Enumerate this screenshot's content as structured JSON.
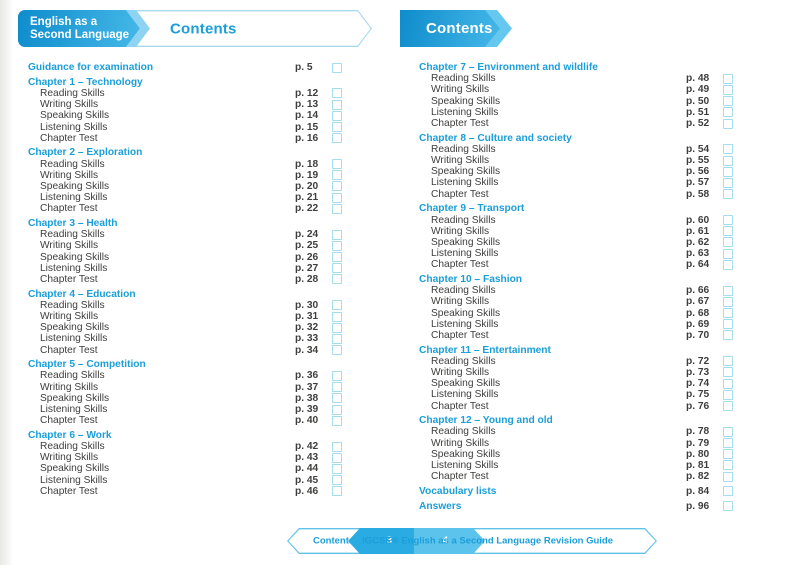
{
  "colors": {
    "accent_blue": "#1b9ed9",
    "banner_gradient_start": "#0f8ccc",
    "banner_gradient_end": "#45b8e8",
    "outline_blue": "#a9d9ee",
    "footer_outline_blue": "#5fc0e8",
    "footer_page_left_fill": "#2aabe2",
    "footer_page_right_fill": "#5cc3ec",
    "checkbox_border": "#a5dcee",
    "body_text": "#3e3e3d"
  },
  "left_page": {
    "banner": {
      "series_line1": "English as a",
      "series_line2": "Second Language",
      "title": "Contents"
    },
    "sections": [
      {
        "title": "Guidance for examination",
        "page": "p. 5",
        "items": []
      },
      {
        "title": "Chapter 1 – Technology",
        "items": [
          {
            "label": "Reading Skills",
            "page": "p. 12"
          },
          {
            "label": "Writing Skills",
            "page": "p. 13"
          },
          {
            "label": "Speaking Skills",
            "page": "p. 14"
          },
          {
            "label": "Listening Skills",
            "page": "p. 15"
          },
          {
            "label": "Chapter Test",
            "page": "p. 16"
          }
        ]
      },
      {
        "title": "Chapter 2 – Exploration",
        "items": [
          {
            "label": "Reading Skills",
            "page": "p. 18"
          },
          {
            "label": "Writing Skills",
            "page": "p. 19"
          },
          {
            "label": "Speaking Skills",
            "page": "p. 20"
          },
          {
            "label": "Listening Skills",
            "page": "p. 21"
          },
          {
            "label": "Chapter Test",
            "page": "p. 22"
          }
        ]
      },
      {
        "title": "Chapter 3 – Health",
        "items": [
          {
            "label": "Reading Skills",
            "page": "p. 24"
          },
          {
            "label": "Writing Skills",
            "page": "p. 25"
          },
          {
            "label": "Speaking Skills",
            "page": "p. 26"
          },
          {
            "label": "Listening Skills",
            "page": "p. 27"
          },
          {
            "label": "Chapter Test",
            "page": "p. 28"
          }
        ]
      },
      {
        "title": "Chapter 4 – Education",
        "items": [
          {
            "label": "Reading Skills",
            "page": "p. 30"
          },
          {
            "label": "Writing Skills",
            "page": "p. 31"
          },
          {
            "label": "Speaking Skills",
            "page": "p. 32"
          },
          {
            "label": "Listening Skills",
            "page": "p. 33"
          },
          {
            "label": "Chapter Test",
            "page": "p. 34"
          }
        ]
      },
      {
        "title": "Chapter 5 – Competition",
        "items": [
          {
            "label": "Reading Skills",
            "page": "p. 36"
          },
          {
            "label": "Writing Skills",
            "page": "p. 37"
          },
          {
            "label": "Speaking Skills",
            "page": "p. 38"
          },
          {
            "label": "Listening Skills",
            "page": "p. 39"
          },
          {
            "label": "Chapter Test",
            "page": "p. 40"
          }
        ]
      },
      {
        "title": "Chapter 6 – Work",
        "items": [
          {
            "label": "Reading Skills",
            "page": "p. 42"
          },
          {
            "label": "Writing Skills",
            "page": "p. 43"
          },
          {
            "label": "Speaking Skills",
            "page": "p. 44"
          },
          {
            "label": "Listening Skills",
            "page": "p. 45"
          },
          {
            "label": "Chapter Test",
            "page": "p. 46"
          }
        ]
      }
    ]
  },
  "right_page": {
    "banner": {
      "title": "Contents"
    },
    "sections": [
      {
        "title": "Chapter 7 – Environment and wildlife",
        "items": [
          {
            "label": "Reading Skills",
            "page": "p. 48"
          },
          {
            "label": "Writing Skills",
            "page": "p. 49"
          },
          {
            "label": "Speaking Skills",
            "page": "p. 50"
          },
          {
            "label": "Listening Skills",
            "page": "p. 51"
          },
          {
            "label": "Chapter Test",
            "page": "p. 52"
          }
        ]
      },
      {
        "title": "Chapter 8 – Culture and society",
        "items": [
          {
            "label": "Reading Skills",
            "page": "p. 54"
          },
          {
            "label": "Writing Skills",
            "page": "p. 55"
          },
          {
            "label": "Speaking Skills",
            "page": "p. 56"
          },
          {
            "label": "Listening Skills",
            "page": "p. 57"
          },
          {
            "label": "Chapter Test",
            "page": "p. 58"
          }
        ]
      },
      {
        "title": "Chapter 9 – Transport",
        "items": [
          {
            "label": "Reading Skills",
            "page": "p. 60"
          },
          {
            "label": "Writing Skills",
            "page": "p. 61"
          },
          {
            "label": "Speaking Skills",
            "page": "p. 62"
          },
          {
            "label": "Listening Skills",
            "page": "p. 63"
          },
          {
            "label": "Chapter Test",
            "page": "p. 64"
          }
        ]
      },
      {
        "title": "Chapter 10 – Fashion",
        "items": [
          {
            "label": "Reading Skills",
            "page": "p. 66"
          },
          {
            "label": "Writing Skills",
            "page": "p. 67"
          },
          {
            "label": "Speaking Skills",
            "page": "p. 68"
          },
          {
            "label": "Listening Skills",
            "page": "p. 69"
          },
          {
            "label": "Chapter Test",
            "page": "p. 70"
          }
        ]
      },
      {
        "title": "Chapter 11 – Entertainment",
        "items": [
          {
            "label": "Reading Skills",
            "page": "p. 72"
          },
          {
            "label": "Writing Skills",
            "page": "p. 73"
          },
          {
            "label": "Speaking Skills",
            "page": "p. 74"
          },
          {
            "label": "Listening Skills",
            "page": "p. 75"
          },
          {
            "label": "Chapter Test",
            "page": "p. 76"
          }
        ]
      },
      {
        "title": "Chapter 12 – Young and old",
        "items": [
          {
            "label": "Reading Skills",
            "page": "p. 78"
          },
          {
            "label": "Writing Skills",
            "page": "p. 79"
          },
          {
            "label": "Speaking Skills",
            "page": "p. 80"
          },
          {
            "label": "Listening Skills",
            "page": "p. 81"
          },
          {
            "label": "Chapter Test",
            "page": "p. 82"
          }
        ]
      },
      {
        "title": "Vocabulary lists",
        "page": "p. 84",
        "items": []
      },
      {
        "title": "Answers",
        "page": "p. 96",
        "items": []
      }
    ]
  },
  "footer": {
    "section_label": "Contents",
    "left_page_number": "3",
    "right_page_number": "4",
    "book_title": "IGCSE® English as a Second Language Revision Guide"
  }
}
